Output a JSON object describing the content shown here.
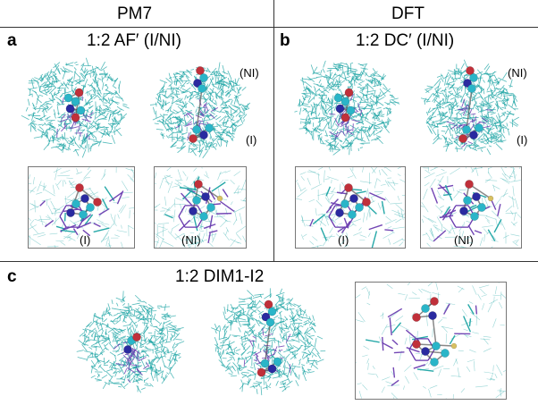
{
  "columns": {
    "left": "PM7",
    "right": "DFT"
  },
  "panels": {
    "a": {
      "letter": "a",
      "title": "1:2 AF′ (I/NI)",
      "label_ni": "(NI)",
      "label_i": "(I)",
      "inset1_label": "(I)",
      "inset2_label": "(NI)"
    },
    "b": {
      "letter": "b",
      "title": "1:2 DC′ (I/NI)",
      "label_ni": "(NI)",
      "label_i": "(I)",
      "inset1_label": "(I)",
      "inset2_label": "(NI)"
    },
    "c": {
      "letter": "c",
      "title": "1:2 DIM1-I2"
    }
  },
  "colors": {
    "cyclodextrin": "#1aa3a3",
    "inner_ring": "#6a3cb0",
    "atom_carbon": "#2ab5c8",
    "atom_nitrogen": "#2a2aa0",
    "atom_oxygen": "#c0303a",
    "atom_fluorine": "#d8c060",
    "box_border": "#777777"
  }
}
